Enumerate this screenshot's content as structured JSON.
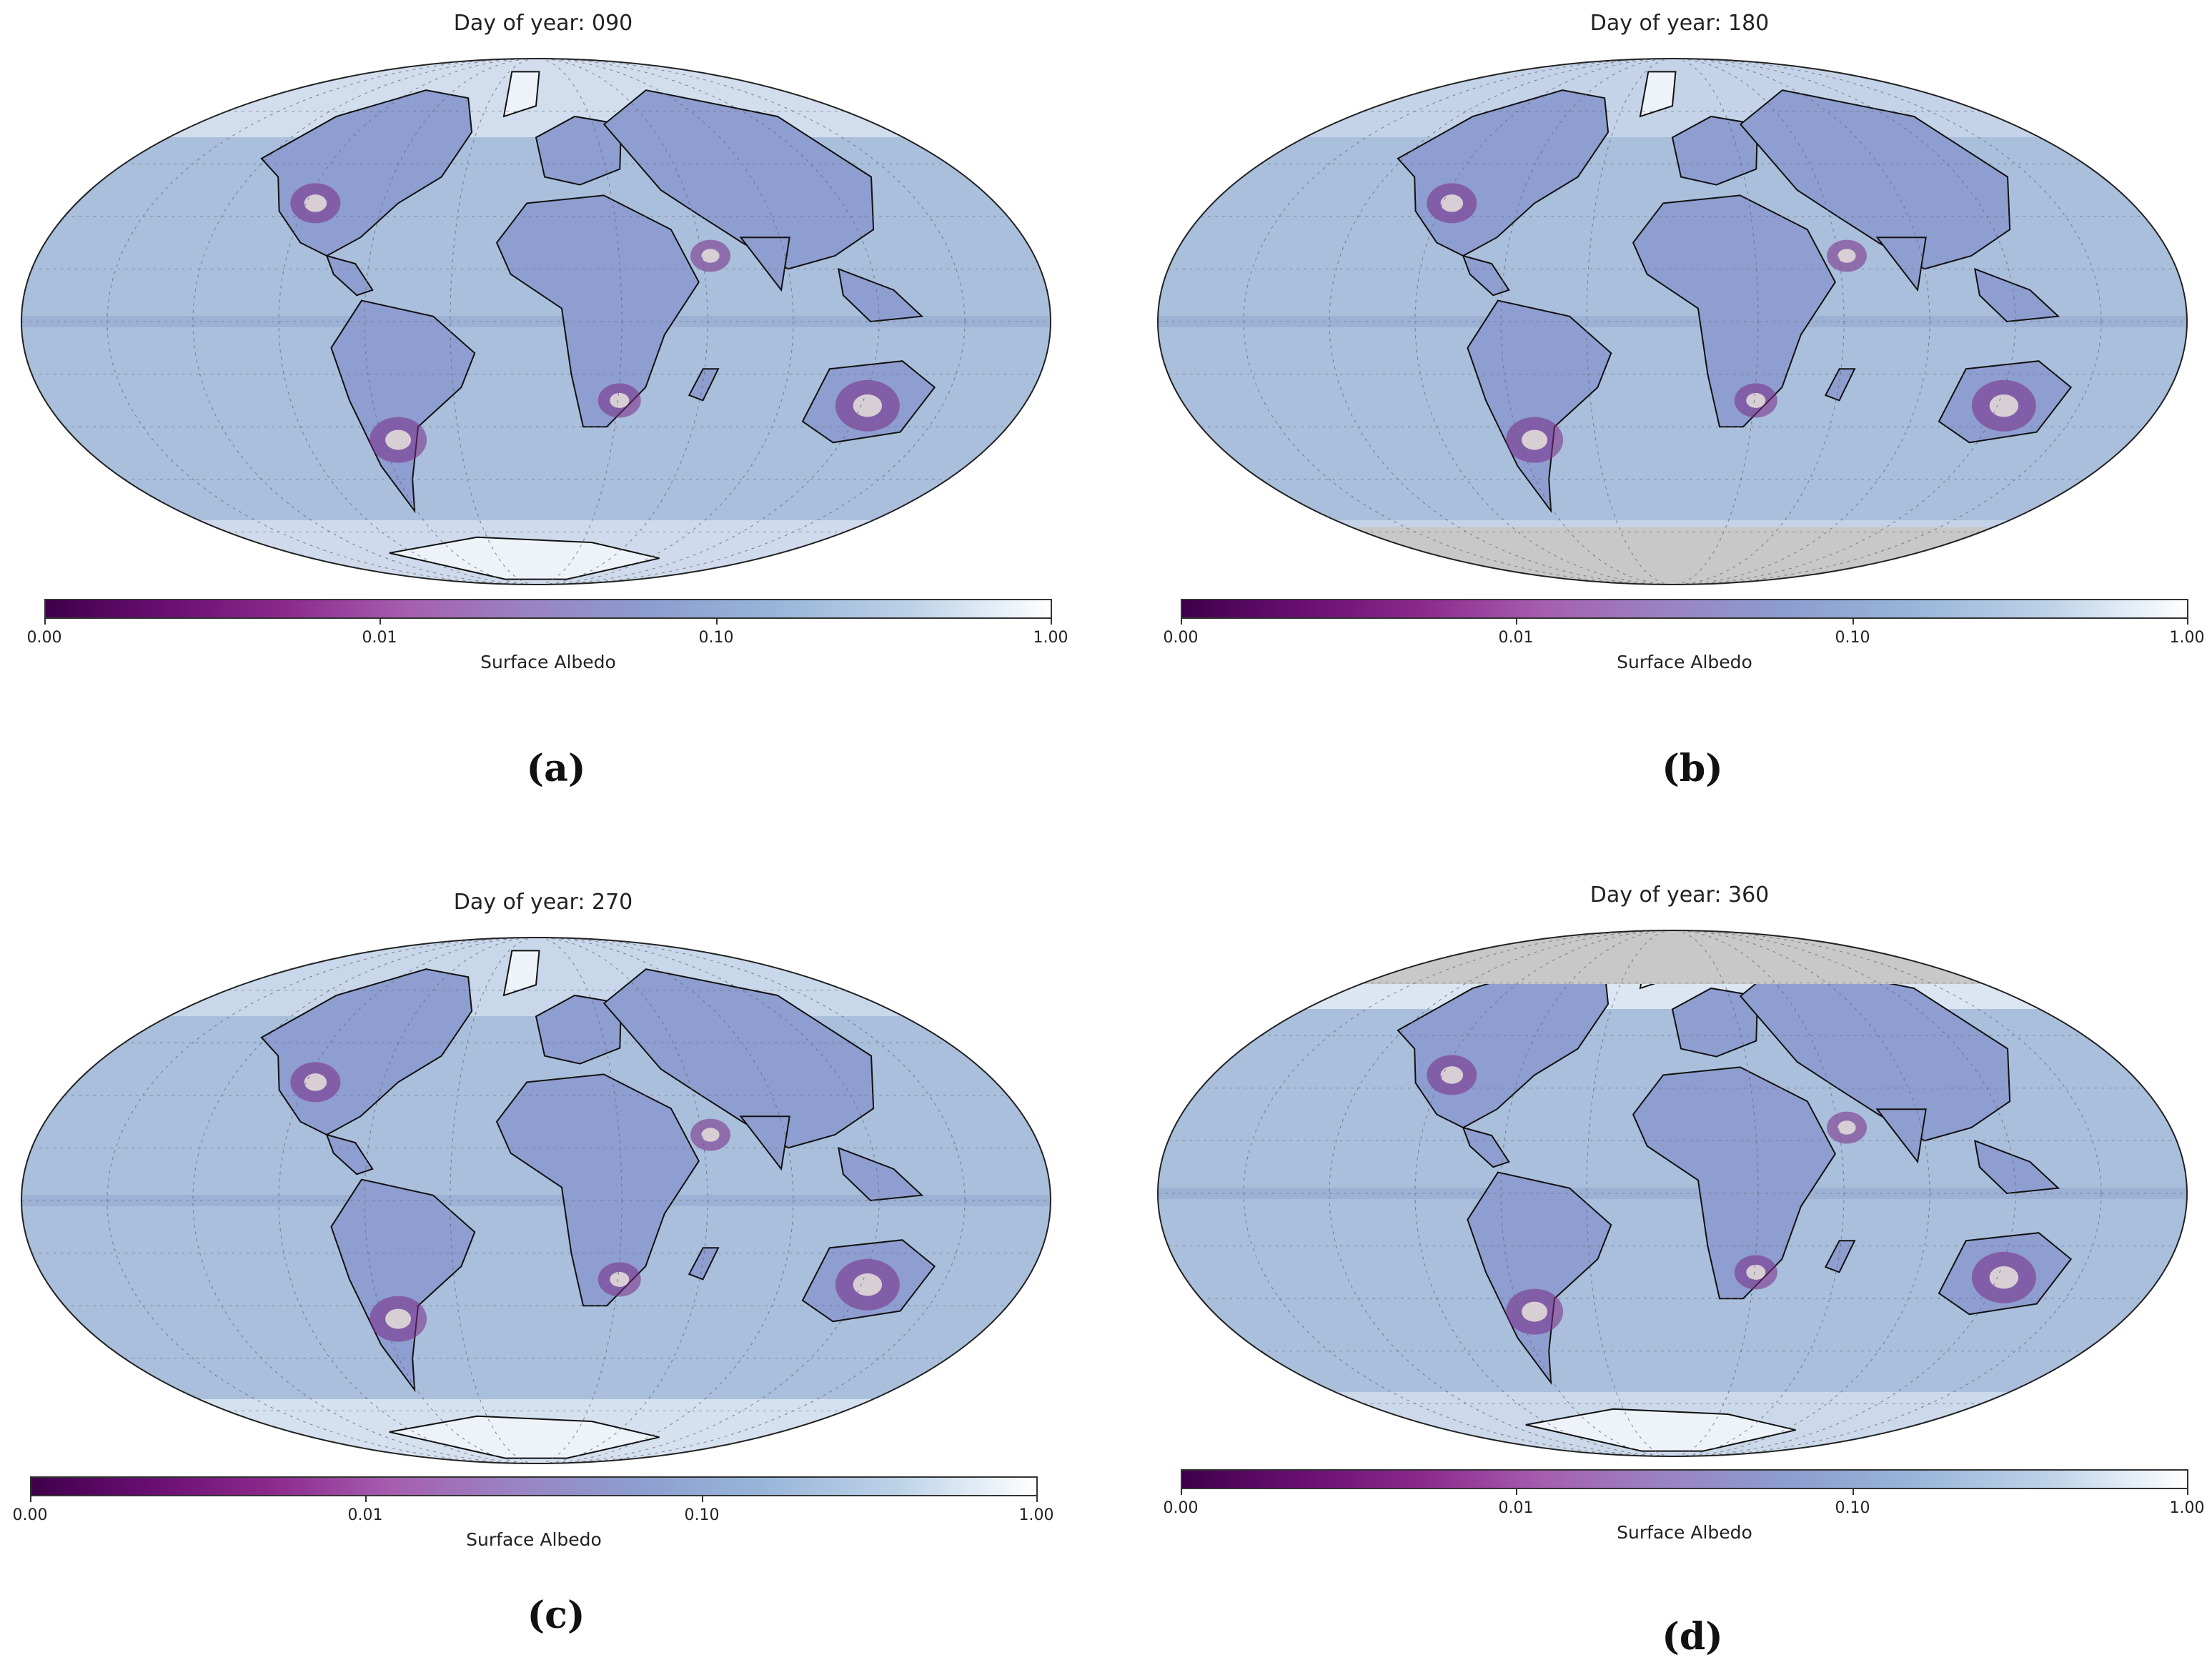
{
  "panels": [
    {
      "title": "Day of year: 090",
      "caption": "(a)",
      "snow_north": 0.2,
      "snow_south": 0.15,
      "gray_north": false,
      "gray_south": false
    },
    {
      "title": "Day of year: 180",
      "caption": "(b)",
      "snow_north": 0.0,
      "snow_south": 0.0,
      "gray_north": false,
      "gray_south": true
    },
    {
      "title": "Day of year: 270",
      "caption": "(c)",
      "snow_north": 0.05,
      "snow_south": 0.25,
      "gray_north": false,
      "gray_south": false
    },
    {
      "title": "Day of year: 360",
      "caption": "(d)",
      "snow_north": 0.35,
      "snow_south": 0.1,
      "gray_north": true,
      "gray_south": false
    }
  ],
  "colorbar": {
    "label": "Surface Albedo",
    "ticks": [
      "0.00",
      "0.01",
      "0.10",
      "1.00"
    ],
    "tick_positions": [
      0,
      0.333,
      0.667,
      1.0
    ]
  },
  "colors": {
    "ocean": "#a9bfdc",
    "land": "#8f9ed0",
    "snow": "#eef3fa",
    "nodata": "#c8c8c8",
    "low_albedo": "#7a2a86"
  }
}
